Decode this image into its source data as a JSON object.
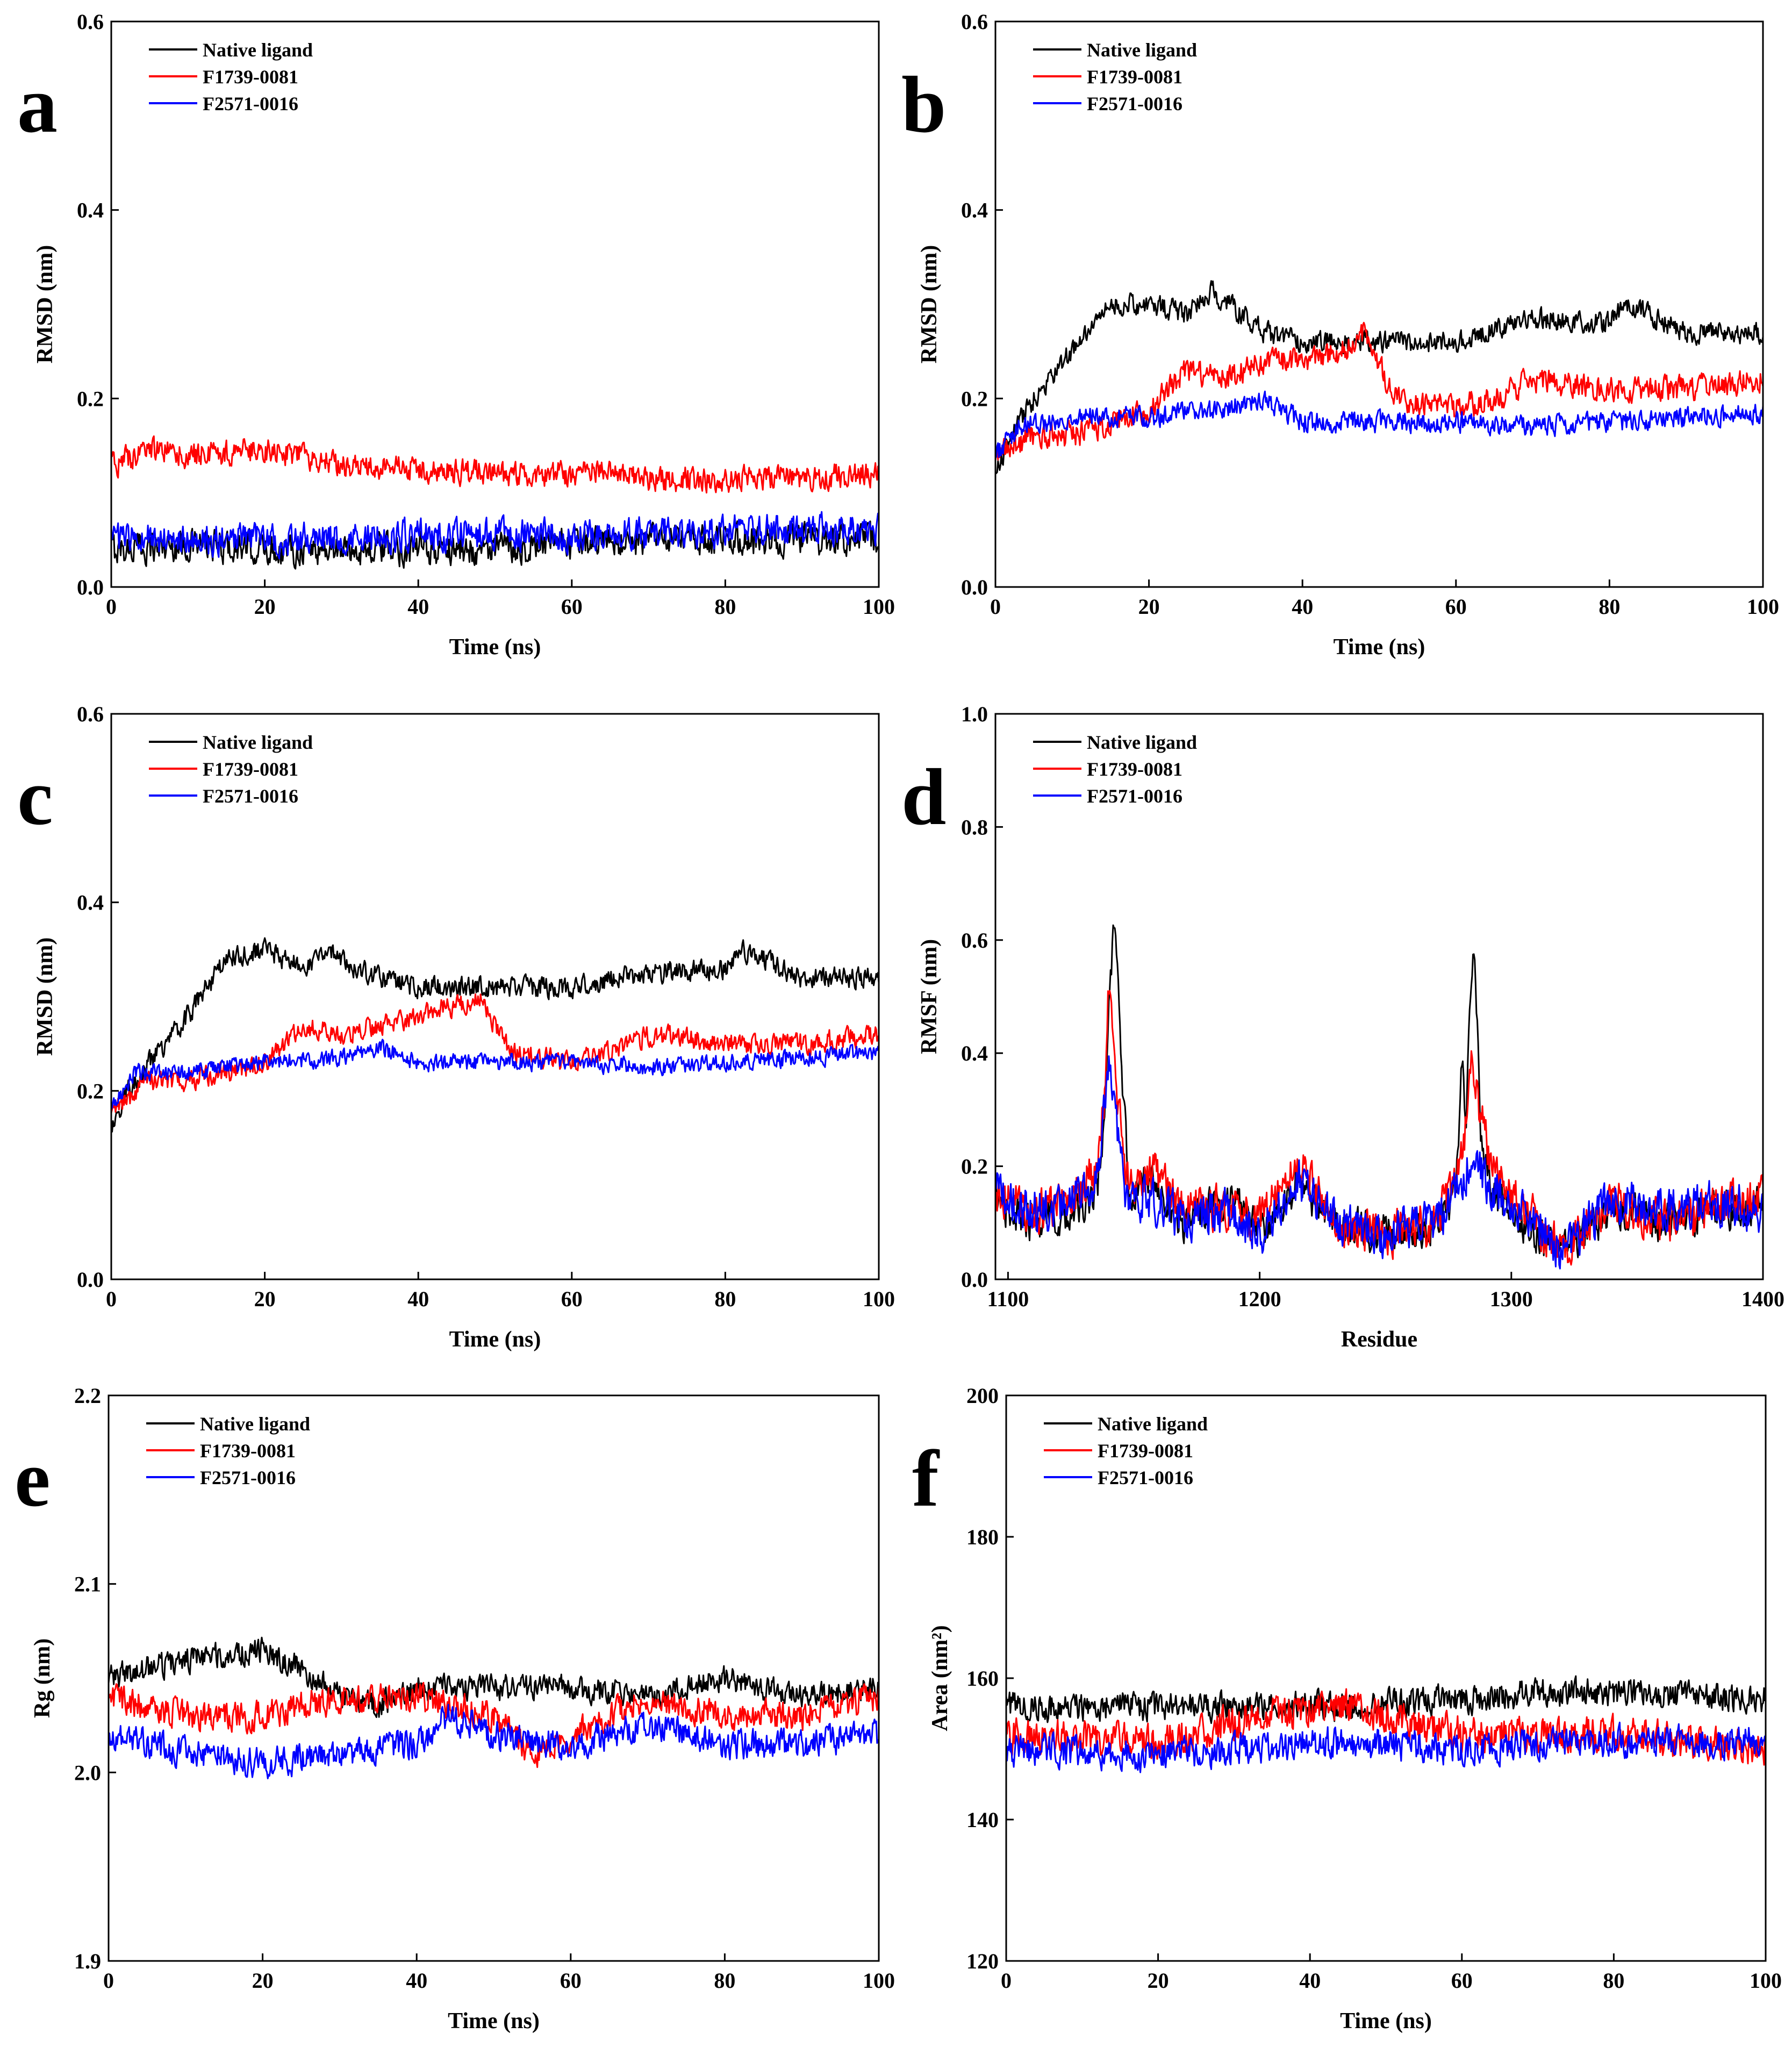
{
  "figure": {
    "panel_count": 6
  },
  "chart_data": [
    {
      "panel": "a",
      "type": "line",
      "xlabel": "Time (ns)",
      "ylabel": "RMSD (nm)",
      "xlim": [
        0,
        100
      ],
      "ylim": [
        0,
        0.6
      ],
      "xticks": [
        "0",
        "20",
        "40",
        "60",
        "80",
        "100"
      ],
      "yticks": [
        "0.0",
        "0.2",
        "0.4",
        "0.6"
      ],
      "legend": [
        "Native ligand",
        "F1739-0081",
        "F2571-0016"
      ],
      "legend_position": "top-left",
      "series": [
        {
          "name": "Native ligand",
          "color": "#000000",
          "x": [
            0,
            10,
            20,
            30,
            40,
            50,
            60,
            70,
            80,
            90,
            100
          ],
          "y": [
            0.04,
            0.045,
            0.04,
            0.04,
            0.04,
            0.04,
            0.045,
            0.05,
            0.05,
            0.05,
            0.05
          ],
          "noise": 0.015
        },
        {
          "name": "F1739-0081",
          "color": "#ff0000",
          "x": [
            0,
            5,
            10,
            20,
            25,
            30,
            40,
            50,
            60,
            65,
            70,
            80,
            90,
            100
          ],
          "y": [
            0.13,
            0.145,
            0.14,
            0.145,
            0.14,
            0.13,
            0.125,
            0.12,
            0.12,
            0.125,
            0.115,
            0.115,
            0.115,
            0.12
          ],
          "noise": 0.012
        },
        {
          "name": "F2571-0016",
          "color": "#0000ff",
          "x": [
            0,
            20,
            40,
            60,
            80,
            100
          ],
          "y": [
            0.05,
            0.05,
            0.055,
            0.055,
            0.06,
            0.06
          ],
          "noise": 0.015
        }
      ]
    },
    {
      "panel": "b",
      "type": "line",
      "xlabel": "Time (ns)",
      "ylabel": "RMSD (nm)",
      "xlim": [
        0,
        100
      ],
      "ylim": [
        0,
        0.6
      ],
      "xticks": [
        "0",
        "20",
        "40",
        "60",
        "80",
        "100"
      ],
      "yticks": [
        "0.0",
        "0.2",
        "0.4",
        "0.6"
      ],
      "legend": [
        "Native ligand",
        "F1739-0081",
        "F2571-0016"
      ],
      "legend_position": "top-left",
      "series": [
        {
          "name": "Native ligand",
          "color": "#000000",
          "x": [
            0,
            2,
            5,
            10,
            15,
            20,
            25,
            28,
            32,
            35,
            40,
            50,
            60,
            70,
            80,
            82,
            90,
            100
          ],
          "y": [
            0.12,
            0.16,
            0.2,
            0.25,
            0.3,
            0.3,
            0.29,
            0.315,
            0.29,
            0.27,
            0.26,
            0.26,
            0.26,
            0.285,
            0.28,
            0.3,
            0.27,
            0.27
          ],
          "noise": 0.01
        },
        {
          "name": "F1739-0081",
          "color": "#ff0000",
          "x": [
            0,
            5,
            10,
            20,
            25,
            30,
            35,
            40,
            45,
            48,
            52,
            60,
            65,
            70,
            80,
            90,
            100
          ],
          "y": [
            0.14,
            0.16,
            0.16,
            0.19,
            0.23,
            0.22,
            0.24,
            0.24,
            0.25,
            0.27,
            0.2,
            0.19,
            0.2,
            0.22,
            0.21,
            0.21,
            0.22
          ],
          "noise": 0.012
        },
        {
          "name": "F2571-0016",
          "color": "#0000ff",
          "x": [
            0,
            3,
            10,
            20,
            30,
            35,
            40,
            50,
            60,
            70,
            80,
            90,
            100
          ],
          "y": [
            0.14,
            0.17,
            0.18,
            0.18,
            0.19,
            0.2,
            0.175,
            0.175,
            0.175,
            0.17,
            0.175,
            0.18,
            0.185
          ],
          "noise": 0.01
        }
      ]
    },
    {
      "panel": "c",
      "type": "line",
      "xlabel": "Time (ns)",
      "ylabel": "RMSD (nm)",
      "xlim": [
        0,
        100
      ],
      "ylim": [
        0,
        0.6
      ],
      "xticks": [
        "0",
        "20",
        "40",
        "60",
        "80",
        "100"
      ],
      "yticks": [
        "0.0",
        "0.2",
        "0.4",
        "0.6"
      ],
      "legend": [
        "Native ligand",
        "F1739-0081",
        "F2571-0016"
      ],
      "legend_position": "top-left",
      "series": [
        {
          "name": "Native ligand",
          "color": "#000000",
          "x": [
            0,
            2,
            5,
            10,
            15,
            20,
            25,
            28,
            32,
            35,
            40,
            50,
            60,
            70,
            80,
            82,
            90,
            100
          ],
          "y": [
            0.16,
            0.2,
            0.23,
            0.28,
            0.34,
            0.35,
            0.33,
            0.35,
            0.33,
            0.32,
            0.31,
            0.31,
            0.31,
            0.325,
            0.33,
            0.35,
            0.32,
            0.32
          ],
          "noise": 0.01
        },
        {
          "name": "F1739-0081",
          "color": "#ff0000",
          "x": [
            0,
            5,
            10,
            20,
            25,
            30,
            35,
            40,
            45,
            48,
            52,
            60,
            65,
            70,
            80,
            90,
            100
          ],
          "y": [
            0.18,
            0.21,
            0.21,
            0.23,
            0.27,
            0.26,
            0.27,
            0.28,
            0.29,
            0.3,
            0.24,
            0.23,
            0.24,
            0.26,
            0.25,
            0.25,
            0.26
          ],
          "noise": 0.01
        },
        {
          "name": "F2571-0016",
          "color": "#0000ff",
          "x": [
            0,
            3,
            10,
            20,
            30,
            35,
            40,
            50,
            60,
            70,
            80,
            90,
            100
          ],
          "y": [
            0.18,
            0.22,
            0.22,
            0.23,
            0.235,
            0.245,
            0.23,
            0.23,
            0.23,
            0.225,
            0.23,
            0.235,
            0.24
          ],
          "noise": 0.008
        }
      ]
    },
    {
      "panel": "d",
      "type": "line",
      "xlabel": "Residue",
      "ylabel": "RMSF (nm)",
      "xlim": [
        1095,
        1400
      ],
      "ylim": [
        0,
        1.0
      ],
      "xticks": [
        "1100",
        "1200",
        "1300",
        "1400"
      ],
      "yticks": [
        "0.0",
        "0.2",
        "0.4",
        "0.6",
        "0.8",
        "1.0"
      ],
      "legend": [
        "Native ligand",
        "F1739-0081",
        "F2571-0016"
      ],
      "legend_position": "top-left",
      "series": [
        {
          "name": "Native ligand",
          "color": "#000000",
          "x": [
            1095,
            1110,
            1125,
            1135,
            1138,
            1140,
            1142,
            1145,
            1148,
            1155,
            1170,
            1188,
            1200,
            1215,
            1230,
            1250,
            1270,
            1278,
            1280,
            1282,
            1285,
            1288,
            1292,
            1300,
            1310,
            1320,
            1340,
            1360,
            1380,
            1400
          ],
          "y": [
            0.13,
            0.1,
            0.11,
            0.15,
            0.25,
            0.45,
            0.65,
            0.4,
            0.15,
            0.18,
            0.1,
            0.15,
            0.08,
            0.17,
            0.1,
            0.08,
            0.1,
            0.15,
            0.38,
            0.3,
            0.61,
            0.25,
            0.15,
            0.12,
            0.08,
            0.05,
            0.12,
            0.1,
            0.12,
            0.13
          ],
          "noise": 0.03
        },
        {
          "name": "F1739-0081",
          "color": "#ff0000",
          "x": [
            1095,
            1110,
            1125,
            1135,
            1138,
            1140,
            1142,
            1145,
            1148,
            1155,
            1170,
            1188,
            1200,
            1215,
            1230,
            1250,
            1270,
            1280,
            1284,
            1287,
            1292,
            1300,
            1310,
            1320,
            1340,
            1360,
            1380,
            1400
          ],
          "y": [
            0.15,
            0.12,
            0.15,
            0.2,
            0.3,
            0.52,
            0.4,
            0.25,
            0.15,
            0.2,
            0.12,
            0.13,
            0.1,
            0.2,
            0.1,
            0.08,
            0.1,
            0.2,
            0.37,
            0.3,
            0.2,
            0.15,
            0.1,
            0.05,
            0.14,
            0.1,
            0.12,
            0.15
          ],
          "noise": 0.035
        },
        {
          "name": "F2571-0016",
          "color": "#0000ff",
          "x": [
            1095,
            1110,
            1125,
            1135,
            1138,
            1140,
            1142,
            1145,
            1148,
            1155,
            1170,
            1188,
            1200,
            1215,
            1230,
            1250,
            1270,
            1280,
            1284,
            1287,
            1292,
            1300,
            1310,
            1320,
            1340,
            1360,
            1380,
            1400
          ],
          "y": [
            0.16,
            0.12,
            0.13,
            0.17,
            0.28,
            0.37,
            0.3,
            0.2,
            0.12,
            0.15,
            0.1,
            0.12,
            0.08,
            0.18,
            0.1,
            0.08,
            0.1,
            0.16,
            0.22,
            0.2,
            0.16,
            0.14,
            0.1,
            0.05,
            0.14,
            0.12,
            0.14,
            0.12
          ],
          "noise": 0.035
        }
      ]
    },
    {
      "panel": "e",
      "type": "line",
      "xlabel": "Time (ns)",
      "ylabel": "Rg (nm)",
      "xlim": [
        0,
        100
      ],
      "ylim": [
        1.9,
        2.2
      ],
      "xticks": [
        "0",
        "20",
        "40",
        "60",
        "80",
        "100"
      ],
      "yticks": [
        "1.9",
        "2.0",
        "2.1",
        "2.2"
      ],
      "legend": [
        "Native ligand",
        "F1739-0081",
        "F2571-0016"
      ],
      "legend_position": "top-left",
      "series": [
        {
          "name": "Native ligand",
          "color": "#000000",
          "x": [
            0,
            10,
            20,
            25,
            30,
            35,
            40,
            50,
            60,
            70,
            80,
            90,
            100
          ],
          "y": [
            2.05,
            2.06,
            2.065,
            2.055,
            2.04,
            2.035,
            2.045,
            2.045,
            2.045,
            2.04,
            2.05,
            2.04,
            2.045
          ],
          "noise": 0.006
        },
        {
          "name": "F1739-0081",
          "color": "#ff0000",
          "x": [
            0,
            10,
            20,
            30,
            40,
            50,
            55,
            60,
            70,
            80,
            90,
            100
          ],
          "y": [
            2.04,
            2.03,
            2.03,
            2.04,
            2.04,
            2.03,
            2.01,
            2.02,
            2.04,
            2.03,
            2.03,
            2.04
          ],
          "noise": 0.007
        },
        {
          "name": "F2571-0016",
          "color": "#0000ff",
          "x": [
            0,
            10,
            20,
            30,
            40,
            44,
            50,
            60,
            70,
            80,
            90,
            100
          ],
          "y": [
            2.02,
            2.01,
            2.005,
            2.01,
            2.015,
            2.03,
            2.02,
            2.015,
            2.025,
            2.015,
            2.015,
            2.02
          ],
          "noise": 0.007
        }
      ]
    },
    {
      "panel": "f",
      "type": "line",
      "xlabel": "Time (ns)",
      "ylabel": "Area (nm²)",
      "xlim": [
        0,
        100
      ],
      "ylim": [
        120,
        200
      ],
      "xticks": [
        "0",
        "20",
        "40",
        "60",
        "80",
        "100"
      ],
      "yticks": [
        "120",
        "140",
        "160",
        "180",
        "200"
      ],
      "legend": [
        "Native ligand",
        "F1739-0081",
        "F2571-0016"
      ],
      "legend_position": "top-left",
      "series": [
        {
          "name": "Native ligand",
          "color": "#000000",
          "x": [
            0,
            20,
            40,
            60,
            70,
            80,
            100
          ],
          "y": [
            156,
            156,
            156,
            157,
            158,
            158,
            157
          ],
          "noise": 1.8
        },
        {
          "name": "F1739-0081",
          "color": "#ff0000",
          "x": [
            0,
            20,
            35,
            45,
            60,
            80,
            100
          ],
          "y": [
            152,
            151,
            155,
            156,
            152,
            152,
            150
          ],
          "noise": 2.2
        },
        {
          "name": "F2571-0016",
          "color": "#0000ff",
          "x": [
            0,
            20,
            40,
            60,
            80,
            100
          ],
          "y": [
            150,
            149,
            151,
            150,
            151,
            151
          ],
          "noise": 2.0
        }
      ]
    }
  ]
}
